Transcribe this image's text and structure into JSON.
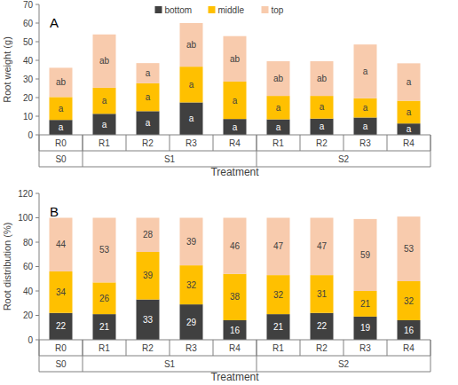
{
  "chart_data": [
    {
      "type": "bar",
      "title": "A",
      "stacked": true,
      "legend": "top",
      "grid": false,
      "data_labels": false,
      "x_label": "Treatment",
      "y_label": "Root weight (g)",
      "categories": [
        "R0",
        "R1",
        "R2",
        "R3",
        "R4",
        "R1",
        "R2",
        "R3",
        "R4"
      ],
      "groups": [
        {
          "label": "S0",
          "size": 1
        },
        {
          "label": "S1",
          "size": 4
        },
        {
          "label": "S2",
          "size": 4
        }
      ],
      "ylim": [
        0,
        70
      ],
      "yticks": [
        0,
        10,
        20,
        30,
        40,
        50,
        60,
        70
      ],
      "series": [
        {
          "name": "bottom",
          "color": "#404040",
          "values": [
            8.0,
            11.3,
            12.7,
            17.4,
            8.5,
            8.3,
            8.7,
            9.3,
            6.1
          ],
          "letters": [
            "a",
            "a",
            "a",
            "a",
            "a",
            "a",
            "a",
            "a",
            "a"
          ]
        },
        {
          "name": "middle",
          "color": "#ffc000",
          "values": [
            12.3,
            14.0,
            15.0,
            19.2,
            20.1,
            12.6,
            12.2,
            10.3,
            12.2
          ],
          "letters": [
            "a",
            "a",
            "a",
            "a",
            "a",
            "a",
            "a",
            "a",
            "a"
          ]
        },
        {
          "name": "top",
          "color": "#f8cbad",
          "values": [
            15.7,
            28.6,
            10.8,
            23.4,
            24.4,
            18.6,
            18.6,
            28.9,
            20.1
          ],
          "letters": [
            "ab",
            "ab",
            "a",
            "ab",
            "ab",
            "ab",
            "ab",
            "a",
            "a"
          ]
        }
      ]
    },
    {
      "type": "bar",
      "title": "B",
      "stacked": true,
      "grid": false,
      "data_labels": true,
      "x_label": "Treatment",
      "y_label": "Root distribution (%)",
      "categories": [
        "R0",
        "R1",
        "R2",
        "R3",
        "R4",
        "R1",
        "R2",
        "R3",
        "R4"
      ],
      "groups": [
        {
          "label": "S0",
          "size": 1
        },
        {
          "label": "S1",
          "size": 4
        },
        {
          "label": "S2",
          "size": 4
        }
      ],
      "ylim": [
        0,
        120
      ],
      "yticks": [
        0,
        20,
        40,
        60,
        80,
        100,
        120
      ],
      "series": [
        {
          "color": "#404040",
          "values": [
            22,
            21,
            33,
            29,
            16,
            21,
            22,
            19,
            16
          ]
        },
        {
          "color": "#ffc000",
          "values": [
            34,
            26,
            39,
            32,
            38,
            32,
            31,
            21,
            32
          ]
        },
        {
          "color": "#f8cbad",
          "values": [
            44,
            53,
            28,
            39,
            46,
            47,
            47,
            59,
            53
          ]
        }
      ]
    }
  ]
}
